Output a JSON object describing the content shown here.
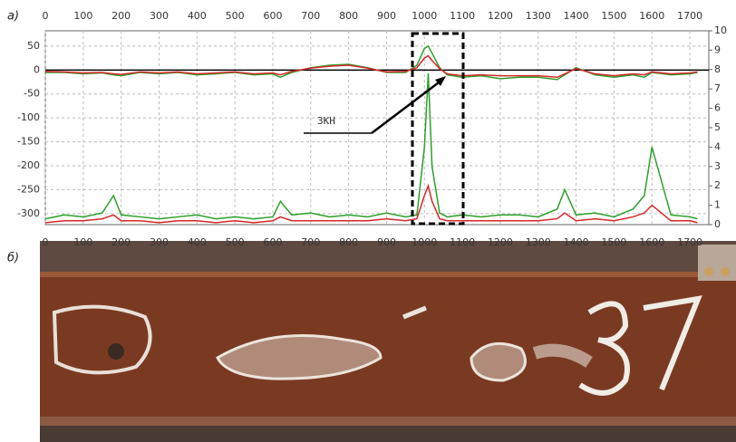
{
  "panel_labels": [
    "а)",
    "б)"
  ],
  "chart_data": {
    "type": "line",
    "annotation": "ЗКН",
    "x": [
      0,
      50,
      100,
      150,
      180,
      200,
      250,
      300,
      350,
      400,
      450,
      500,
      550,
      600,
      620,
      650,
      700,
      750,
      800,
      850,
      900,
      950,
      980,
      1000,
      1010,
      1020,
      1040,
      1060,
      1100,
      1150,
      1200,
      1250,
      1300,
      1350,
      1370,
      1400,
      1450,
      1500,
      1550,
      1580,
      1600,
      1650,
      1700,
      1720
    ],
    "xlim": [
      0,
      1750
    ],
    "xticks": [
      0,
      100,
      200,
      300,
      400,
      500,
      600,
      700,
      800,
      900,
      1000,
      1100,
      1200,
      1300,
      1400,
      1500,
      1600,
      1700
    ],
    "ylim": [
      -323,
      82
    ],
    "yticks": [
      50,
      0,
      -50,
      -100,
      -150,
      -200,
      -250,
      -300
    ],
    "y2lim": [
      0,
      10
    ],
    "y2ticks": [
      10,
      9,
      8,
      7,
      6,
      5,
      4,
      3,
      2,
      1,
      0
    ],
    "grid": true,
    "series": [
      {
        "name": "upper-green",
        "color": "#2ca02c",
        "values": [
          -5,
          -5,
          -8,
          -6,
          -10,
          -12,
          -5,
          -8,
          -5,
          -10,
          -8,
          -5,
          -10,
          -8,
          -15,
          -5,
          5,
          10,
          12,
          5,
          -5,
          -5,
          10,
          45,
          50,
          35,
          5,
          -10,
          -15,
          -12,
          -18,
          -15,
          -15,
          -20,
          -10,
          5,
          -10,
          -15,
          -10,
          -15,
          -5,
          -10,
          -8,
          -5
        ]
      },
      {
        "name": "upper-red",
        "color": "#d62728",
        "values": [
          -3,
          -4,
          -6,
          -5,
          -8,
          -9,
          -4,
          -6,
          -4,
          -8,
          -6,
          -4,
          -8,
          -6,
          -10,
          -3,
          4,
          8,
          10,
          4,
          -4,
          -3,
          5,
          25,
          30,
          20,
          3,
          -8,
          -12,
          -10,
          -12,
          -12,
          -12,
          -15,
          -8,
          3,
          -8,
          -12,
          -8,
          -10,
          -4,
          -8,
          -6,
          -4
        ]
      },
      {
        "name": "lower-green",
        "color": "#2ca02c",
        "axis": "y2",
        "values": [
          0.3,
          0.5,
          0.4,
          0.6,
          1.5,
          0.5,
          0.4,
          0.3,
          0.4,
          0.5,
          0.3,
          0.4,
          0.3,
          0.4,
          1.2,
          0.5,
          0.6,
          0.4,
          0.5,
          0.4,
          0.6,
          0.4,
          0.5,
          4,
          7.8,
          3,
          0.6,
          0.4,
          0.5,
          0.4,
          0.5,
          0.5,
          0.4,
          0.8,
          1.8,
          0.5,
          0.6,
          0.4,
          0.8,
          1.5,
          4,
          0.5,
          0.4,
          0.3
        ]
      },
      {
        "name": "lower-red",
        "color": "#d62728",
        "axis": "y2",
        "values": [
          0.1,
          0.2,
          0.2,
          0.3,
          0.5,
          0.2,
          0.2,
          0.1,
          0.2,
          0.2,
          0.1,
          0.2,
          0.1,
          0.2,
          0.4,
          0.2,
          0.2,
          0.2,
          0.2,
          0.2,
          0.3,
          0.2,
          0.3,
          1.5,
          2,
          1.2,
          0.3,
          0.2,
          0.2,
          0.2,
          0.2,
          0.2,
          0.2,
          0.3,
          0.6,
          0.2,
          0.3,
          0.2,
          0.4,
          0.6,
          1,
          0.2,
          0.2,
          0.1
        ]
      }
    ]
  }
}
